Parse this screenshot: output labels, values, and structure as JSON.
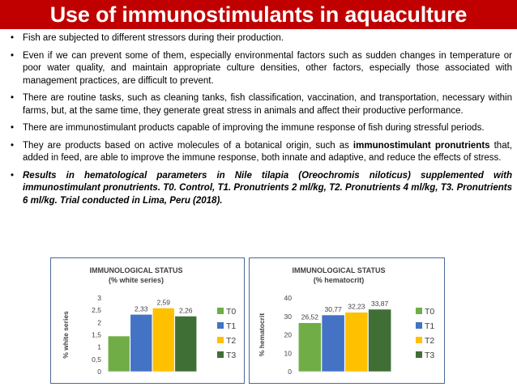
{
  "title": "Use of immunostimulants in aquaculture",
  "bullet_symbol": "•",
  "bullets": [
    {
      "text": "Fish are subjected to different stressors during their production."
    },
    {
      "text": "Even if we can prevent some of them, especially environmental factors such as sudden changes in temperature or poor water quality, and maintain appropriate culture densities, other factors, especially those associated with management practices, are difficult to prevent."
    },
    {
      "text": "There are routine tasks, such as cleaning tanks, fish classification, vaccination, and transportation, necessary within farms, but, at the same time, they generate great stress in animals and affect their productive performance."
    },
    {
      "text": "There are immunostimulant products capable of improving the immune response of fish during stressful periods."
    },
    {
      "pre": "They are products based on active molecules of a botanical origin, such as ",
      "strong": "immunostimulant pronutrients",
      "post": " that, added in feed, are able to improve the immune response, both innate and adaptive, and reduce the effects of stress."
    },
    {
      "text": "Results in hematological parameters in Nile tilapia (Oreochromis niloticus) supplemented with immunostimulant pronutrients. T0. Control, T1. Pronutrients 2 ml/kg, T2. Pronutrients 4 ml/kg, T3. Pronutrients 6 ml/kg. Trial conducted in Lima, Peru (2018)."
    }
  ],
  "colors": {
    "title_bg": "#c00000",
    "T0": "#70ad47",
    "T1": "#4472c4",
    "T2": "#ffc000",
    "T3": "#3f6f35",
    "frame": "#4a6a95"
  },
  "chart_data": [
    {
      "type": "bar",
      "title": "IMMUNOLOGICAL STATUS",
      "subtitle": "(% white series)",
      "ylabel": "% white series",
      "ylim": [
        0,
        3
      ],
      "yticks": [
        "0",
        "0,5",
        "1",
        "1,5",
        "2",
        "2,5",
        "3"
      ],
      "categories": [
        "T0",
        "T1",
        "T2",
        "T3"
      ],
      "values": [
        1.45,
        2.33,
        2.59,
        2.26
      ],
      "data_labels": [
        "",
        "2,33",
        "2,59",
        "2,26"
      ],
      "legend": [
        "T0",
        "T1",
        "T2",
        "T3"
      ],
      "legend_position": "right"
    },
    {
      "type": "bar",
      "title": "IMMUNOLOGICAL STATUS",
      "subtitle": "(% hematocrit)",
      "ylabel": "% hematocrit",
      "ylim": [
        0,
        40
      ],
      "yticks": [
        "0",
        "10",
        "20",
        "30",
        "40"
      ],
      "categories": [
        "T0",
        "T1",
        "T2",
        "T3"
      ],
      "values": [
        26.52,
        30.77,
        32.23,
        33.87
      ],
      "data_labels": [
        "26,52",
        "30,77",
        "32,23",
        "33,87"
      ],
      "legend": [
        "T0",
        "T1",
        "T2",
        "T3"
      ],
      "legend_position": "right"
    }
  ]
}
